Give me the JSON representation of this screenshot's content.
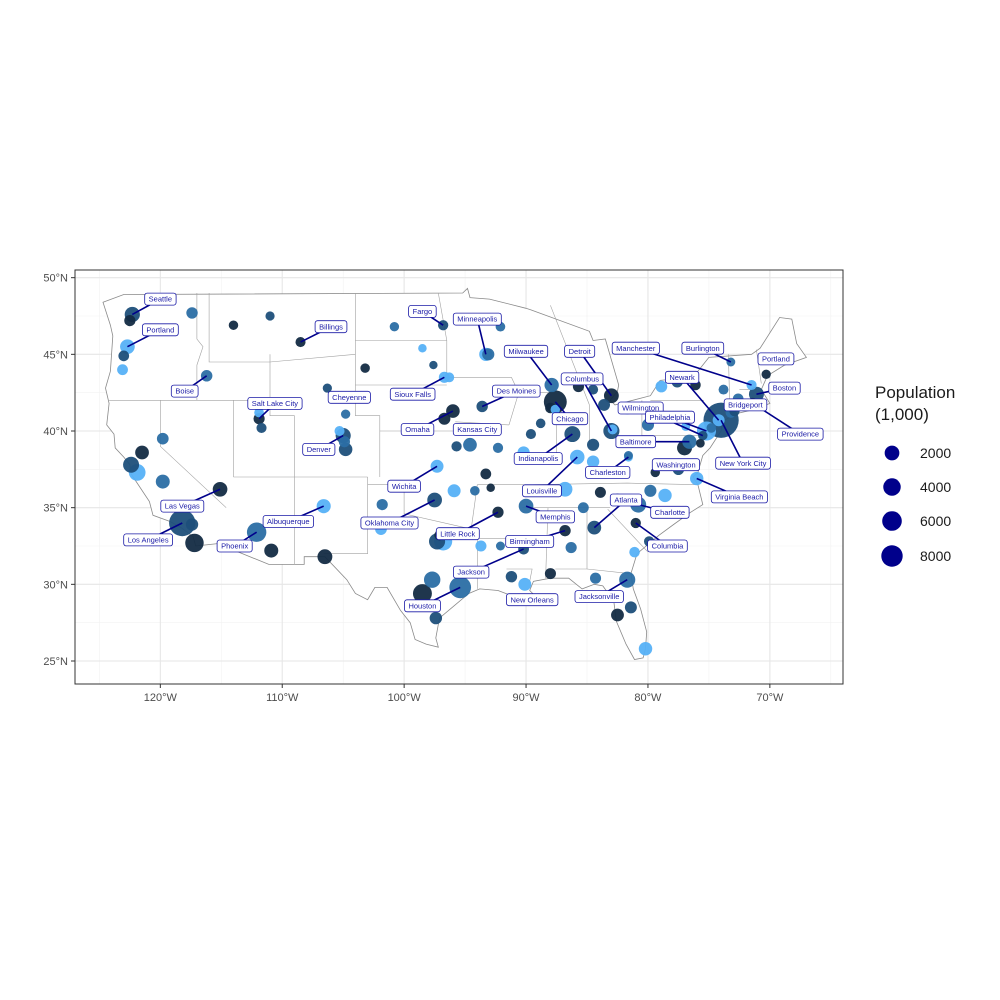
{
  "chart_data": {
    "type": "scatter",
    "subtype": "map-bubble",
    "title": "",
    "xlabel": "",
    "ylabel": "",
    "xlim": [
      -127,
      -64
    ],
    "ylim": [
      23.5,
      50.5
    ],
    "x_ticks": [
      -120,
      -110,
      -100,
      -90,
      -80,
      -70
    ],
    "x_tick_labels": [
      "120°W",
      "110°W",
      "100°W",
      "90°W",
      "80°W",
      "70°W"
    ],
    "y_ticks": [
      25,
      30,
      35,
      40,
      45,
      50
    ],
    "y_tick_labels": [
      "25°N",
      "30°N",
      "35°N",
      "40°N",
      "45°N",
      "50°N"
    ],
    "grid": true,
    "colors": {
      "label_border": "#1a1aa6",
      "label_text": "#1a1aa6",
      "leader_line": "#00008b",
      "legend_point": "#00008b",
      "point_palette": [
        "#132b43",
        "#2b6ea4",
        "#56b1f7",
        "#1d4f7a"
      ]
    },
    "legend": {
      "title_line1": "Population",
      "title_line2": "(1,000)",
      "position": "right",
      "entries": [
        {
          "label": "2000",
          "value": 2000
        },
        {
          "label": "4000",
          "value": 4000
        },
        {
          "label": "6000",
          "value": 6000
        },
        {
          "label": "8000",
          "value": 8000
        }
      ]
    },
    "labeled_cities": [
      {
        "name": "Seattle",
        "lon": -122.3,
        "lat": 47.6,
        "pop": 740,
        "label_lon": -120.0,
        "label_lat": 48.6
      },
      {
        "name": "Portland",
        "lon": -122.7,
        "lat": 45.5,
        "pop": 650,
        "label_lon": -120.0,
        "label_lat": 46.6
      },
      {
        "name": "Boise",
        "lon": -116.2,
        "lat": 43.6,
        "pop": 230,
        "label_lon": -118.0,
        "label_lat": 42.6
      },
      {
        "name": "Billings",
        "lon": -108.5,
        "lat": 45.8,
        "pop": 110,
        "label_lon": -106.0,
        "label_lat": 46.8
      },
      {
        "name": "Fargo",
        "lon": -96.8,
        "lat": 46.9,
        "pop": 125,
        "label_lon": -98.5,
        "label_lat": 47.8
      },
      {
        "name": "Minneapolis",
        "lon": -93.3,
        "lat": 45.0,
        "pop": 430,
        "label_lon": -94.0,
        "label_lat": 47.3
      },
      {
        "name": "Milwaukee",
        "lon": -87.9,
        "lat": 43.0,
        "pop": 590,
        "label_lon": -90.0,
        "label_lat": 45.2
      },
      {
        "name": "Detroit",
        "lon": -83.0,
        "lat": 42.3,
        "pop": 670,
        "label_lon": -85.6,
        "label_lat": 45.2
      },
      {
        "name": "Columbus",
        "lon": -83.0,
        "lat": 40.0,
        "pop": 900,
        "label_lon": -85.4,
        "label_lat": 43.4
      },
      {
        "name": "Manchester",
        "lon": -71.5,
        "lat": 43.0,
        "pop": 115,
        "label_lon": -81.0,
        "label_lat": 45.4
      },
      {
        "name": "Burlington",
        "lon": -73.2,
        "lat": 44.5,
        "pop": 45,
        "label_lon": -75.5,
        "label_lat": 45.4
      },
      {
        "name": "Portland",
        "lon": -70.3,
        "lat": 43.7,
        "pop": 68,
        "label_lon": -69.5,
        "label_lat": 44.7
      },
      {
        "name": "Boston",
        "lon": -71.1,
        "lat": 42.4,
        "pop": 690,
        "label_lon": -68.8,
        "label_lat": 42.8
      },
      {
        "name": "Newark",
        "lon": -74.2,
        "lat": 40.7,
        "pop": 280,
        "label_lon": -77.2,
        "label_lat": 43.5
      },
      {
        "name": "Bridgeport",
        "lon": -73.2,
        "lat": 41.2,
        "pop": 145,
        "label_lon": -72.0,
        "label_lat": 41.7
      },
      {
        "name": "Providence",
        "lon": -71.4,
        "lat": 41.8,
        "pop": 180,
        "label_lon": -67.5,
        "label_lat": 39.8
      },
      {
        "name": "Wilmington",
        "lon": -75.5,
        "lat": 39.7,
        "pop": 70,
        "label_lon": -80.6,
        "label_lat": 41.5
      },
      {
        "name": "Philadelphia",
        "lon": -75.2,
        "lat": 40.0,
        "pop": 1580,
        "label_lon": -78.2,
        "label_lat": 40.9
      },
      {
        "name": "Baltimore",
        "lon": -76.6,
        "lat": 39.3,
        "pop": 590,
        "label_lon": -81.0,
        "label_lat": 39.3
      },
      {
        "name": "Washington",
        "lon": -77.0,
        "lat": 38.9,
        "pop": 690,
        "label_lon": -77.7,
        "label_lat": 37.8
      },
      {
        "name": "New York City",
        "lon": -74.0,
        "lat": 40.7,
        "pop": 8400,
        "label_lon": -72.2,
        "label_lat": 37.9
      },
      {
        "name": "Virginia Beach",
        "lon": -76.0,
        "lat": 36.9,
        "pop": 450,
        "label_lon": -72.5,
        "label_lat": 35.7
      },
      {
        "name": "Charlotte",
        "lon": -80.8,
        "lat": 35.2,
        "pop": 870,
        "label_lon": -78.2,
        "label_lat": 34.7
      },
      {
        "name": "Columbia",
        "lon": -81.0,
        "lat": 34.0,
        "pop": 130,
        "label_lon": -78.4,
        "label_lat": 32.5
      },
      {
        "name": "Atlanta",
        "lon": -84.4,
        "lat": 33.7,
        "pop": 500,
        "label_lon": -81.8,
        "label_lat": 35.5
      },
      {
        "name": "Charleston",
        "lon": -81.6,
        "lat": 38.3,
        "pop": 50,
        "label_lon": -83.3,
        "label_lat": 37.3
      },
      {
        "name": "Jacksonville",
        "lon": -81.7,
        "lat": 30.3,
        "pop": 900,
        "label_lon": -84.0,
        "label_lat": 29.2
      },
      {
        "name": "Chicago",
        "lon": -87.6,
        "lat": 41.9,
        "pop": 2700,
        "label_lon": -86.4,
        "label_lat": 40.8
      },
      {
        "name": "Indianapolis",
        "lon": -86.2,
        "lat": 39.8,
        "pop": 870,
        "label_lon": -89.0,
        "label_lat": 38.2
      },
      {
        "name": "Louisville",
        "lon": -85.8,
        "lat": 38.3,
        "pop": 620,
        "label_lon": -88.7,
        "label_lat": 36.1
      },
      {
        "name": "Memphis",
        "lon": -90.0,
        "lat": 35.1,
        "pop": 650,
        "label_lon": -87.6,
        "label_lat": 34.4
      },
      {
        "name": "Birmingham",
        "lon": -86.8,
        "lat": 33.5,
        "pop": 210,
        "label_lon": -89.7,
        "label_lat": 32.8
      },
      {
        "name": "Jackson",
        "lon": -90.2,
        "lat": 32.3,
        "pop": 165,
        "label_lon": -94.5,
        "label_lat": 30.8
      },
      {
        "name": "New Orleans",
        "lon": -90.1,
        "lat": 30.0,
        "pop": 390,
        "label_lon": -89.5,
        "label_lat": 29.0
      },
      {
        "name": "Houston",
        "lon": -95.4,
        "lat": 29.8,
        "pop": 2300,
        "label_lon": -98.5,
        "label_lat": 28.6
      },
      {
        "name": "Little Rock",
        "lon": -92.3,
        "lat": 34.7,
        "pop": 200,
        "label_lon": -95.6,
        "label_lat": 33.3
      },
      {
        "name": "Oklahoma City",
        "lon": -97.5,
        "lat": 35.5,
        "pop": 650,
        "label_lon": -101.2,
        "label_lat": 34.0
      },
      {
        "name": "Wichita",
        "lon": -97.3,
        "lat": 37.7,
        "pop": 390,
        "label_lon": -100.0,
        "label_lat": 36.4
      },
      {
        "name": "Kansas City",
        "lon": -94.6,
        "lat": 39.1,
        "pop": 500,
        "label_lon": -94.0,
        "label_lat": 40.1
      },
      {
        "name": "Omaha",
        "lon": -96.0,
        "lat": 41.3,
        "pop": 480,
        "label_lon": -98.9,
        "label_lat": 40.1
      },
      {
        "name": "Des Moines",
        "lon": -93.6,
        "lat": 41.6,
        "pop": 220,
        "label_lon": -90.8,
        "label_lat": 42.6
      },
      {
        "name": "Sioux Falls",
        "lon": -96.7,
        "lat": 43.5,
        "pop": 190,
        "label_lon": -99.3,
        "label_lat": 42.4
      },
      {
        "name": "Cheyenne",
        "lon": -104.8,
        "lat": 41.1,
        "pop": 65,
        "label_lon": -104.5,
        "label_lat": 42.2
      },
      {
        "name": "Salt Lake City",
        "lon": -111.9,
        "lat": 40.8,
        "pop": 200,
        "label_lon": -110.6,
        "label_lat": 41.8
      },
      {
        "name": "Denver",
        "lon": -105.0,
        "lat": 39.7,
        "pop": 720,
        "label_lon": -107.0,
        "label_lat": 38.8
      },
      {
        "name": "Albuquerque",
        "lon": -106.6,
        "lat": 35.1,
        "pop": 560,
        "label_lon": -109.5,
        "label_lat": 34.1
      },
      {
        "name": "Phoenix",
        "lon": -112.1,
        "lat": 33.4,
        "pop": 1660,
        "label_lon": -113.9,
        "label_lat": 32.5
      },
      {
        "name": "Las Vegas",
        "lon": -115.1,
        "lat": 36.2,
        "pop": 640,
        "label_lon": -118.2,
        "label_lat": 35.1
      },
      {
        "name": "Los Angeles",
        "lon": -118.2,
        "lat": 34.0,
        "pop": 3990,
        "label_lon": -121.0,
        "label_lat": 32.9
      }
    ],
    "other_points": [
      {
        "lon": -122.5,
        "lat": 47.2,
        "pop": 200
      },
      {
        "lon": -123.0,
        "lat": 44.9,
        "pop": 160
      },
      {
        "lon": -123.1,
        "lat": 44.0,
        "pop": 170
      },
      {
        "lon": -117.4,
        "lat": 47.7,
        "pop": 220
      },
      {
        "lon": -114.0,
        "lat": 46.9,
        "pop": 75
      },
      {
        "lon": -111.0,
        "lat": 47.5,
        "pop": 60
      },
      {
        "lon": -104.6,
        "lat": 50.0,
        "pop": 0
      },
      {
        "lon": -100.8,
        "lat": 46.8,
        "pop": 70
      },
      {
        "lon": -103.2,
        "lat": 44.1,
        "pop": 75
      },
      {
        "lon": -106.3,
        "lat": 42.8,
        "pop": 60
      },
      {
        "lon": -98.5,
        "lat": 45.4,
        "pop": 30
      },
      {
        "lon": -92.1,
        "lat": 46.8,
        "pop": 85
      },
      {
        "lon": -96.7,
        "lat": 40.8,
        "pop": 290
      },
      {
        "lon": -97.6,
        "lat": 44.3,
        "pop": 25
      },
      {
        "lon": -96.3,
        "lat": 43.5,
        "pop": 100
      },
      {
        "lon": -93.1,
        "lat": 45.0,
        "pop": 300
      },
      {
        "lon": -85.7,
        "lat": 42.9,
        "pop": 200
      },
      {
        "lon": -84.5,
        "lat": 42.7,
        "pop": 110
      },
      {
        "lon": -81.7,
        "lat": 41.5,
        "pop": 380
      },
      {
        "lon": -80.0,
        "lat": 40.4,
        "pop": 300
      },
      {
        "lon": -88.0,
        "lat": 41.5,
        "pop": 150
      },
      {
        "lon": -89.6,
        "lat": 39.8,
        "pop": 115
      },
      {
        "lon": -90.2,
        "lat": 38.6,
        "pop": 310
      },
      {
        "lon": -92.3,
        "lat": 38.9,
        "pop": 120
      },
      {
        "lon": -93.3,
        "lat": 37.2,
        "pop": 165
      },
      {
        "lon": -95.7,
        "lat": 39.0,
        "pop": 125
      },
      {
        "lon": -95.9,
        "lat": 36.1,
        "pop": 400
      },
      {
        "lon": -94.2,
        "lat": 36.1,
        "pop": 80
      },
      {
        "lon": -92.9,
        "lat": 36.3,
        "pop": 30
      },
      {
        "lon": -88.8,
        "lat": 40.5,
        "pop": 80
      },
      {
        "lon": -86.8,
        "lat": 36.2,
        "pop": 660
      },
      {
        "lon": -85.3,
        "lat": 35.0,
        "pop": 175
      },
      {
        "lon": -83.9,
        "lat": 36.0,
        "pop": 185
      },
      {
        "lon": -84.5,
        "lat": 39.1,
        "pop": 300
      },
      {
        "lon": -84.5,
        "lat": 38.0,
        "pop": 320
      },
      {
        "lon": -81.6,
        "lat": 38.4,
        "pop": 50
      },
      {
        "lon": -79.4,
        "lat": 37.3,
        "pop": 75
      },
      {
        "lon": -77.5,
        "lat": 37.5,
        "pop": 220
      },
      {
        "lon": -78.6,
        "lat": 35.8,
        "pop": 450
      },
      {
        "lon": -79.8,
        "lat": 36.1,
        "pop": 290
      },
      {
        "lon": -82.5,
        "lat": 35.6,
        "pop": 90
      },
      {
        "lon": -79.9,
        "lat": 32.8,
        "pop": 135
      },
      {
        "lon": -81.1,
        "lat": 32.1,
        "pop": 145
      },
      {
        "lon": -84.3,
        "lat": 30.4,
        "pop": 190
      },
      {
        "lon": -82.5,
        "lat": 28.0,
        "pop": 380
      },
      {
        "lon": -81.4,
        "lat": 28.5,
        "pop": 280
      },
      {
        "lon": -80.2,
        "lat": 25.8,
        "pop": 460
      },
      {
        "lon": -86.3,
        "lat": 32.4,
        "pop": 200
      },
      {
        "lon": -88.0,
        "lat": 30.7,
        "pop": 190
      },
      {
        "lon": -91.2,
        "lat": 30.5,
        "pop": 220
      },
      {
        "lon": -93.7,
        "lat": 32.5,
        "pop": 190
      },
      {
        "lon": -92.1,
        "lat": 32.5,
        "pop": 50
      },
      {
        "lon": -97.1,
        "lat": 33.2,
        "pop": 130
      },
      {
        "lon": -97.3,
        "lat": 32.8,
        "pop": 900
      },
      {
        "lon": -96.8,
        "lat": 32.8,
        "pop": 1340
      },
      {
        "lon": -97.7,
        "lat": 30.3,
        "pop": 960
      },
      {
        "lon": -98.5,
        "lat": 29.4,
        "pop": 1530
      },
      {
        "lon": -97.4,
        "lat": 27.8,
        "pop": 325
      },
      {
        "lon": -101.9,
        "lat": 33.6,
        "pop": 250
      },
      {
        "lon": -101.8,
        "lat": 35.2,
        "pop": 200
      },
      {
        "lon": -106.5,
        "lat": 31.8,
        "pop": 680
      },
      {
        "lon": -104.8,
        "lat": 38.8,
        "pop": 470
      },
      {
        "lon": -105.3,
        "lat": 40.0,
        "pop": 110
      },
      {
        "lon": -104.9,
        "lat": 39.3,
        "pop": 200
      },
      {
        "lon": -110.9,
        "lat": 32.2,
        "pop": 540
      },
      {
        "lon": -111.7,
        "lat": 40.2,
        "pop": 115
      },
      {
        "lon": -111.9,
        "lat": 41.2,
        "pop": 85
      },
      {
        "lon": -119.8,
        "lat": 39.5,
        "pop": 250
      },
      {
        "lon": -121.5,
        "lat": 38.6,
        "pop": 500
      },
      {
        "lon": -122.4,
        "lat": 37.8,
        "pop": 880
      },
      {
        "lon": -121.9,
        "lat": 37.3,
        "pop": 1030
      },
      {
        "lon": -119.8,
        "lat": 36.7,
        "pop": 530
      },
      {
        "lon": -117.2,
        "lat": 32.7,
        "pop": 1420
      },
      {
        "lon": -117.4,
        "lat": 33.9,
        "pop": 320
      },
      {
        "lon": -87.6,
        "lat": 41.4,
        "pop": 75
      },
      {
        "lon": -73.8,
        "lat": 42.7,
        "pop": 100
      },
      {
        "lon": -76.1,
        "lat": 43.0,
        "pop": 145
      },
      {
        "lon": -77.6,
        "lat": 43.2,
        "pop": 205
      },
      {
        "lon": -78.9,
        "lat": 42.9,
        "pop": 255
      },
      {
        "lon": -72.6,
        "lat": 42.1,
        "pop": 155
      },
      {
        "lon": -68.8,
        "lat": 44.8,
        "pop": 32
      },
      {
        "lon": -72.9,
        "lat": 41.3,
        "pop": 130
      },
      {
        "lon": -76.9,
        "lat": 40.3,
        "pop": 50
      },
      {
        "lon": -74.8,
        "lat": 40.2,
        "pop": 85
      },
      {
        "lon": -75.7,
        "lat": 39.2,
        "pop": 40
      },
      {
        "lon": -83.6,
        "lat": 41.7,
        "pop": 270
      },
      {
        "lon": -82.9,
        "lat": 40.1,
        "pop": 100
      }
    ]
  }
}
